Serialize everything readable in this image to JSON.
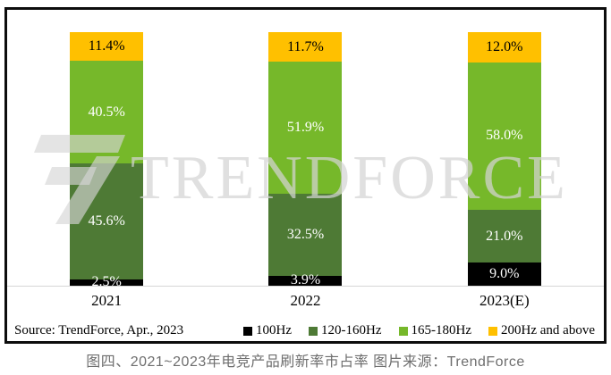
{
  "caption": "图四、2021~2023年电竞产品刷新率市占率 图片来源：TrendForce",
  "watermark": {
    "text": "TRENDFORCE"
  },
  "footer": {
    "source": "Source: TrendForce, Apr., 2023"
  },
  "colors": {
    "black_series": "#000000",
    "dark_green_series": "#4e7a35",
    "light_green_series": "#76b82a",
    "yellow_series": "#ffc000",
    "frame_border": "#0d0d0d",
    "baseline": "#d6d6d6",
    "caption_text": "#6e6e6e",
    "watermark_gray": "#d4d4d4"
  },
  "chart_data": {
    "type": "bar",
    "stacked": true,
    "percent_stack": true,
    "title": "图四、2021~2023年电竞产品刷新率市占率 图片来源：TrendForce",
    "xlabel": "",
    "ylabel": "",
    "ylim": [
      0,
      100
    ],
    "grid": false,
    "legend_position": "bottom",
    "source": "Source: TrendForce, Apr., 2023",
    "categories": [
      "2021",
      "2022",
      "2023(E)"
    ],
    "series": [
      {
        "name": "100Hz",
        "color": "#000000",
        "label_color": "#ffffff",
        "values": [
          2.5,
          3.9,
          9.0
        ]
      },
      {
        "name": "120-160Hz",
        "color": "#4e7a35",
        "label_color": "#ffffff",
        "values": [
          45.6,
          32.5,
          21.0
        ]
      },
      {
        "name": "165-180Hz",
        "color": "#76b82a",
        "label_color": "#ffffff",
        "values": [
          40.5,
          51.9,
          58.0
        ]
      },
      {
        "name": "200Hz and above",
        "color": "#ffc000",
        "label_color": "#000000",
        "values": [
          11.4,
          11.7,
          12.0
        ]
      }
    ]
  }
}
